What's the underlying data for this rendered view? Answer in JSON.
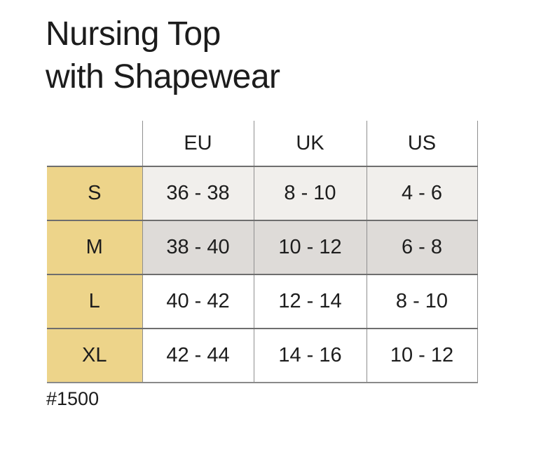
{
  "page": {
    "title_lines": [
      "Nursing Top",
      "with Shapewear"
    ],
    "footer_note": "#1500"
  },
  "colors": {
    "size_label_bg": "#edd48a",
    "row_s_bg": "#f1efec",
    "row_m_bg": "#dedbd8",
    "row_l_bg": "#ffffff",
    "row_xl_bg": "#ffffff",
    "horizontal_border": "#6e6e6e",
    "vertical_border": "#8f8f8f",
    "text": "#1d1d1d",
    "background": "#ffffff"
  },
  "chart_data": {
    "type": "table",
    "title": "Nursing Top with Shapewear",
    "title_lines": [
      "Nursing Top",
      "with Shapewear"
    ],
    "columns": [
      "",
      "EU",
      "UK",
      "US"
    ],
    "rows": [
      {
        "label": "S",
        "cells": [
          "36 - 38",
          "8 - 10",
          "4 - 6"
        ]
      },
      {
        "label": "M",
        "cells": [
          "38 - 40",
          "10 - 12",
          "6 - 8"
        ]
      },
      {
        "label": "L",
        "cells": [
          "40 - 42",
          "12 - 14",
          "8 - 10"
        ]
      },
      {
        "label": "XL",
        "cells": [
          "42 - 44",
          "14 - 16",
          "10 - 12"
        ]
      }
    ],
    "shaded_rows": [
      "S",
      "M"
    ],
    "note": "#1500",
    "legend_position": "none",
    "grid": true
  }
}
